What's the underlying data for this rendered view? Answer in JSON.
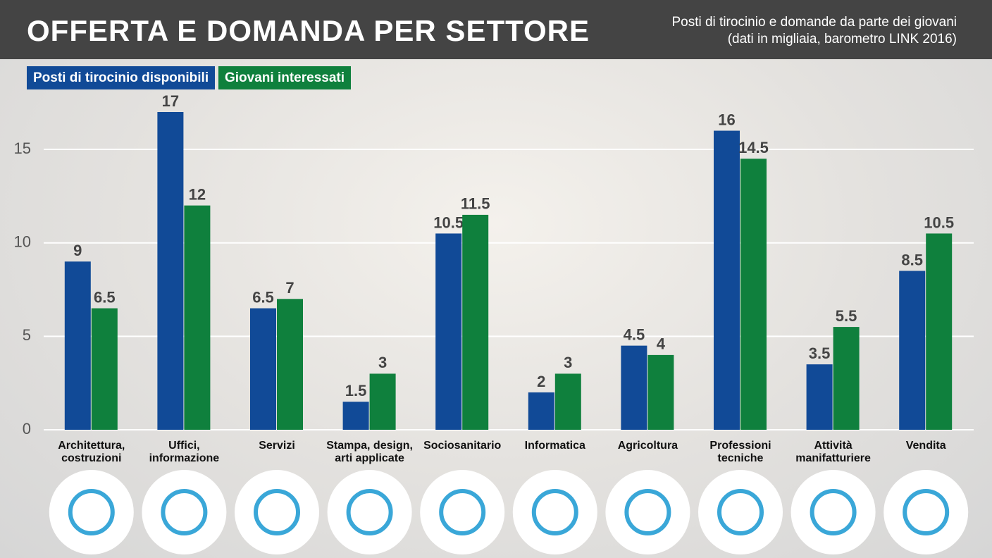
{
  "chart_data": {
    "type": "bar",
    "title": "OFFERTA E DOMANDA PER SETTORE",
    "subtitle": [
      "Posti di tirocinio e domande da parte dei giovani",
      "(dati in migliaia, barometro LINK 2016)"
    ],
    "categories": [
      "Architettura, costruzioni",
      "Uffici, informazione",
      "Servizi",
      "Stampa, design, arti applicate",
      "Sociosanitario",
      "Informatica",
      "Agricoltura",
      "Professioni tecniche",
      "Attività manifatturiere",
      "Vendita"
    ],
    "series": [
      {
        "name": "Posti di tirocinio disponibili",
        "color": "#114a97",
        "values": [
          9,
          17,
          6.5,
          1.5,
          10.5,
          2,
          4.5,
          16,
          3.5,
          8.5
        ]
      },
      {
        "name": "Giovani interessati",
        "color": "#0f803d",
        "values": [
          6.5,
          12,
          7,
          3,
          11.5,
          3,
          4,
          14.5,
          5.5,
          10.5
        ]
      }
    ],
    "ylim": [
      0,
      17
    ],
    "yticks": [
      0,
      5,
      10,
      15
    ],
    "grid": true,
    "legend": "top-left"
  }
}
